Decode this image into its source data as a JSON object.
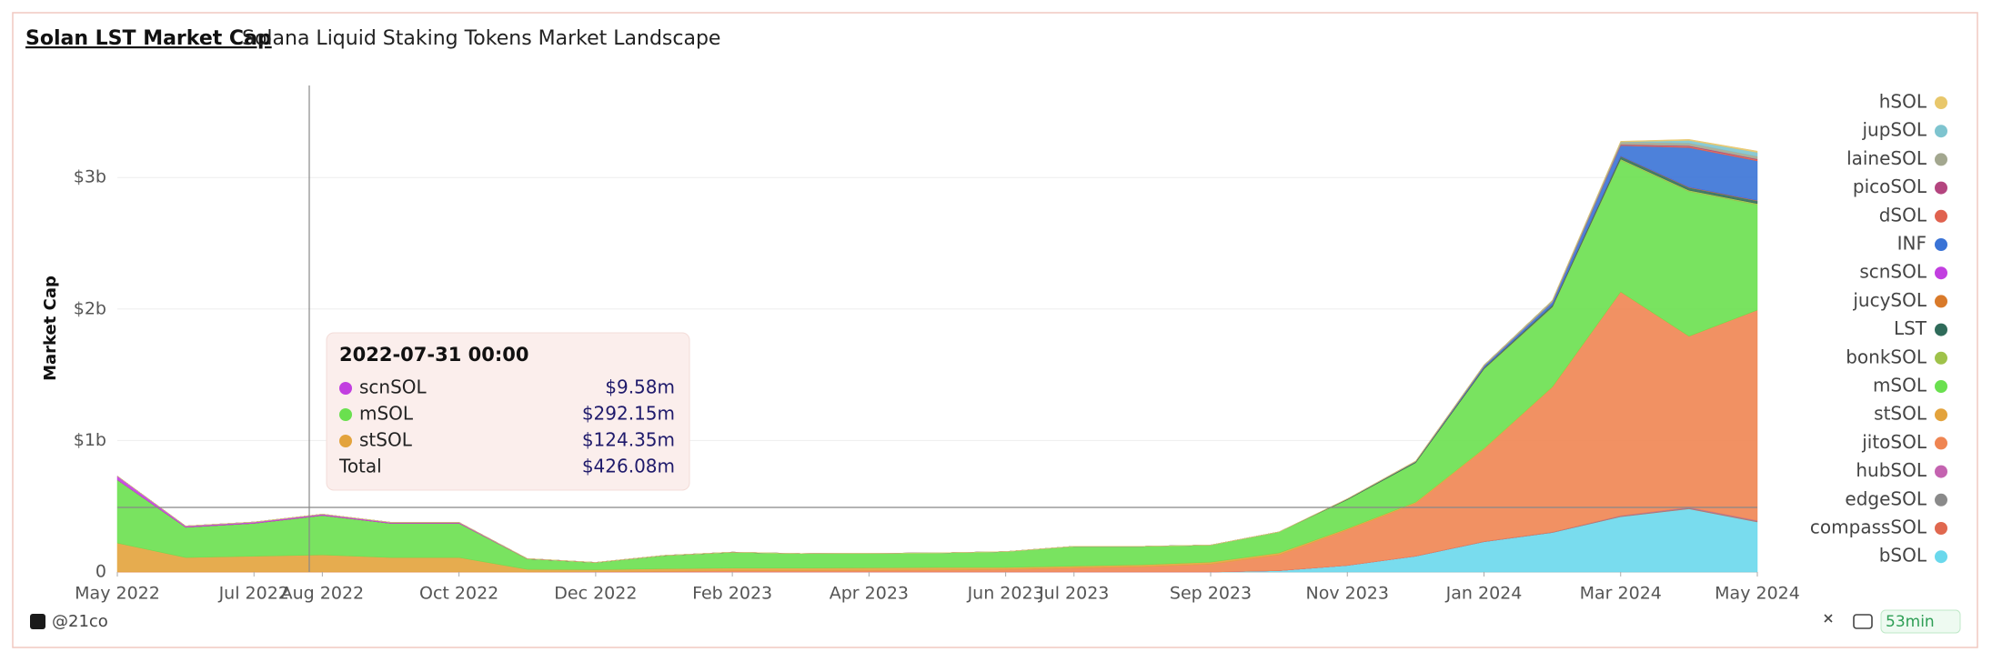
{
  "chart_data": {
    "type": "stacked-area",
    "title": "Solan LST Market Cap",
    "subtitle": "Solana Liquid Staking Tokens Market Landscape",
    "y_label": "Market Cap",
    "x": [
      "2022-05",
      "2022-06",
      "2022-07",
      "2022-08",
      "2022-09",
      "2022-10",
      "2022-11",
      "2022-12",
      "2023-01",
      "2023-02",
      "2023-03",
      "2023-04",
      "2023-05",
      "2023-06",
      "2023-07",
      "2023-08",
      "2023-09",
      "2023-10",
      "2023-11",
      "2023-12",
      "2024-01",
      "2024-02",
      "2024-03",
      "2024-04",
      "2024-05"
    ],
    "xlim": [
      "2022-05",
      "2024-05"
    ],
    "xticks": [
      {
        "value": "2022-05",
        "label": "May 2022"
      },
      {
        "value": "2022-07",
        "label": "Jul 2022"
      },
      {
        "value": "2022-08",
        "label": "Aug 2022"
      },
      {
        "value": "2022-10",
        "label": "Oct 2022"
      },
      {
        "value": "2022-12",
        "label": "Dec 2022"
      },
      {
        "value": "2023-02",
        "label": "Feb 2023"
      },
      {
        "value": "2023-04",
        "label": "Apr 2023"
      },
      {
        "value": "2023-06",
        "label": "Jun 2023"
      },
      {
        "value": "2023-07",
        "label": "Jul 2023"
      },
      {
        "value": "2023-09",
        "label": "Sep 2023"
      },
      {
        "value": "2023-11",
        "label": "Nov 2023"
      },
      {
        "value": "2024-01",
        "label": "Jan 2024"
      },
      {
        "value": "2024-03",
        "label": "Mar 2024"
      },
      {
        "value": "2024-05",
        "label": "May 2024"
      }
    ],
    "ylim": [
      0,
      3700000000
    ],
    "yticks": [
      0,
      {
        "value": 1000000000,
        "label": "$1b"
      },
      {
        "value": 2000000000,
        "label": "$2b"
      },
      {
        "value": 3000000000,
        "label": "$3b"
      }
    ],
    "grid": true,
    "series": [
      {
        "name": "hSOL",
        "color": "#e8c76b",
        "values": [
          0,
          0,
          0,
          0,
          0,
          0,
          0,
          0,
          0,
          0,
          0,
          0,
          0,
          0,
          0,
          0,
          0,
          0,
          0,
          0,
          0,
          0,
          5000000.0,
          8000000.0,
          10000000.0
        ]
      },
      {
        "name": "jupSOL",
        "color": "#7ec4cf",
        "values": [
          0,
          0,
          0,
          0,
          0,
          0,
          0,
          0,
          0,
          0,
          0,
          0,
          0,
          0,
          0,
          0,
          0,
          0,
          0,
          0,
          0,
          0,
          0,
          20000000.0,
          30000000.0
        ]
      },
      {
        "name": "laineSOL",
        "color": "#a3a78f",
        "values": [
          0,
          0,
          0,
          0,
          0,
          0,
          0,
          0,
          0,
          0,
          0,
          0,
          0,
          0,
          0,
          0,
          0,
          0,
          2000000.0,
          5000000.0,
          10000000.0,
          15000000.0,
          20000000.0,
          20000000.0,
          20000000.0
        ]
      },
      {
        "name": "picoSOL",
        "color": "#b4457f",
        "values": [
          0,
          0,
          0,
          0,
          0,
          0,
          0,
          0,
          0,
          0,
          0,
          0,
          0,
          0,
          0,
          0,
          0,
          0,
          0,
          0,
          0,
          0,
          3000000.0,
          5000000.0,
          5000000.0
        ]
      },
      {
        "name": "dSOL",
        "color": "#e0624f",
        "values": [
          0,
          0,
          0,
          0,
          0,
          0,
          0,
          0,
          0,
          0,
          0,
          0,
          0,
          0,
          0,
          0,
          0,
          0,
          0,
          0,
          0,
          0,
          5000000.0,
          10000000.0,
          10000000.0
        ]
      },
      {
        "name": "INF",
        "color": "#3a73d6",
        "values": [
          0,
          0,
          0,
          0,
          0,
          0,
          0,
          0,
          0,
          0,
          0,
          0,
          0,
          0,
          0,
          0,
          0,
          0,
          0,
          0,
          10000000.0,
          20000000.0,
          80000000.0,
          300000000.0,
          300000000.0
        ]
      },
      {
        "name": "scnSOL",
        "color": "#c23fe0",
        "values": [
          30000000.0,
          10000000.0,
          10000000.0,
          10000000.0,
          8000000.0,
          8000000.0,
          2000000.0,
          1000000.0,
          1000000.0,
          1000000.0,
          0,
          0,
          0,
          0,
          0,
          0,
          0,
          0,
          0,
          0,
          0,
          0,
          0,
          0,
          0
        ]
      },
      {
        "name": "jucySOL",
        "color": "#d97a2a",
        "values": [
          0,
          0,
          0,
          0,
          0,
          0,
          0,
          0,
          0,
          0,
          0,
          0,
          0,
          0,
          0,
          0,
          0,
          0,
          0,
          0,
          0,
          0,
          2000000.0,
          4000000.0,
          4000000.0
        ]
      },
      {
        "name": "LST",
        "color": "#2f6b5a",
        "values": [
          0,
          0,
          0,
          0,
          0,
          0,
          0,
          0,
          0,
          0,
          0,
          0,
          0,
          0,
          0,
          0,
          0,
          0,
          5000000.0,
          8000000.0,
          10000000.0,
          15000000.0,
          20000000.0,
          20000000.0,
          20000000.0
        ]
      },
      {
        "name": "bonkSOL",
        "color": "#9fc24a",
        "values": [
          0,
          0,
          0,
          0,
          0,
          0,
          0,
          0,
          0,
          0,
          0,
          0,
          0,
          0,
          0,
          0,
          0,
          0,
          0,
          0,
          5000000.0,
          8000000.0,
          10000000.0,
          10000000.0,
          10000000.0
        ]
      },
      {
        "name": "mSOL",
        "color": "#6ae04f",
        "values": [
          480000000.0,
          230000000.0,
          250000000.0,
          300000000.0,
          260000000.0,
          260000000.0,
          80000000.0,
          55000000.0,
          100000000.0,
          120000000.0,
          110000000.0,
          110000000.0,
          110000000.0,
          120000000.0,
          150000000.0,
          140000000.0,
          130000000.0,
          160000000.0,
          220000000.0,
          300000000.0,
          600000000.0,
          600000000.0,
          1000000000.0,
          1100000000.0,
          800000000.0
        ]
      },
      {
        "name": "stSOL",
        "color": "#e3a33c",
        "values": [
          220000000.0,
          110000000.0,
          120000000.0,
          130000000.0,
          110000000.0,
          110000000.0,
          20000000.0,
          15000000.0,
          20000000.0,
          20000000.0,
          20000000.0,
          20000000.0,
          20000000.0,
          15000000.0,
          15000000.0,
          15000000.0,
          15000000.0,
          15000000.0,
          10000000.0,
          10000000.0,
          8000000.0,
          5000000.0,
          3000000.0,
          2000000.0,
          1000000.0
        ]
      },
      {
        "name": "jitoSOL",
        "color": "#ef8552",
        "values": [
          0,
          0,
          0,
          0,
          0,
          0,
          0,
          2000000.0,
          5000000.0,
          10000000.0,
          10000000.0,
          12000000.0,
          15000000.0,
          20000000.0,
          30000000.0,
          40000000.0,
          60000000.0,
          120000000.0,
          270000000.0,
          400000000.0,
          700000000.0,
          1100000000.0,
          1700000000.0,
          1300000000.0,
          1600000000.0
        ]
      },
      {
        "name": "hubSOL",
        "color": "#c463b0",
        "values": [
          0,
          0,
          0,
          0,
          0,
          0,
          0,
          0,
          0,
          0,
          0,
          0,
          0,
          0,
          0,
          0,
          0,
          0,
          0,
          0,
          0,
          0,
          2000000.0,
          3000000.0,
          3000000.0
        ]
      },
      {
        "name": "edgeSOL",
        "color": "#8a8a8a",
        "values": [
          0,
          0,
          0,
          0,
          0,
          0,
          0,
          0,
          0,
          0,
          0,
          0,
          0,
          0,
          0,
          0,
          0,
          0,
          0,
          1000000.0,
          2000000.0,
          3000000.0,
          4000000.0,
          5000000.0,
          5000000.0
        ]
      },
      {
        "name": "compassSOL",
        "color": "#e0684f",
        "values": [
          0,
          0,
          0,
          0,
          0,
          0,
          0,
          0,
          0,
          0,
          0,
          0,
          0,
          0,
          0,
          0,
          0,
          0,
          0,
          0,
          0,
          0,
          2000000.0,
          3000000.0,
          3000000.0
        ]
      },
      {
        "name": "bSOL",
        "color": "#6ad8ec",
        "values": [
          0,
          0,
          0,
          0,
          0,
          0,
          0,
          0,
          0,
          0,
          0,
          0,
          0,
          0,
          0,
          0,
          0,
          10000000.0,
          50000000.0,
          120000000.0,
          230000000.0,
          300000000.0,
          420000000.0,
          480000000.0,
          380000000.0
        ]
      }
    ]
  },
  "tooltip": {
    "title": "2022-07-31 00:00",
    "items": [
      {
        "name": "scnSOL",
        "color": "#c23fe0",
        "value": "$9.58m"
      },
      {
        "name": "mSOL",
        "color": "#6ae04f",
        "value": "$292.15m"
      },
      {
        "name": "stSOL",
        "color": "#e3a33c",
        "value": "$124.35m"
      }
    ],
    "total_label": "Total",
    "total": "$426.08m"
  },
  "footer": {
    "source": "@21co",
    "age": "53min"
  }
}
